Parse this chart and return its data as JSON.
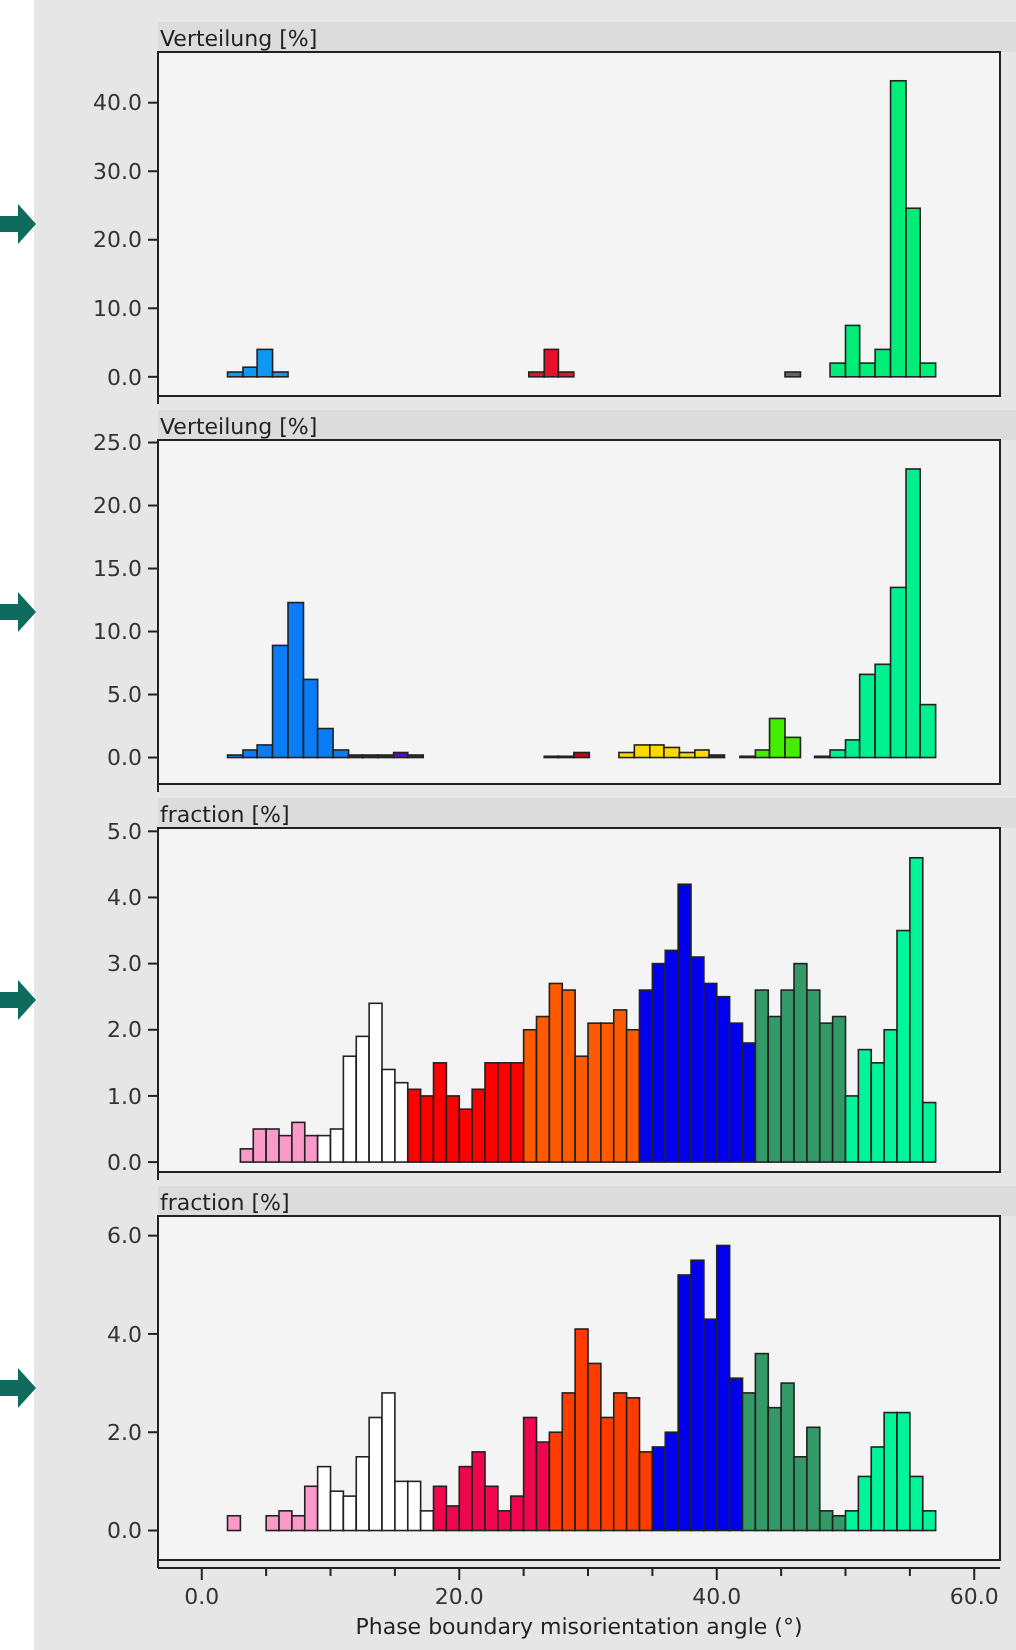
{
  "chart_data": [
    {
      "type": "histogram",
      "ylabel": "Verteilung [%]",
      "tick_labels": "y",
      "xlim": [
        -3.4,
        62
      ],
      "bins": [
        2.0,
        3.2,
        4.3,
        5.5,
        6.7,
        25.4,
        26.6,
        27.7,
        28.9,
        45.3,
        46.5,
        48.8,
        50.0,
        51.1,
        52.3,
        53.5,
        54.7,
        55.8,
        57.0
      ],
      "values": [
        0.7,
        1.4,
        4.0,
        0.7,
        0,
        0.7,
        4.0,
        0.7,
        0,
        0.7,
        0,
        2.0,
        7.5,
        2.0,
        4.0,
        43.2,
        24.6,
        2.0
      ],
      "colors": [
        "#1098f0",
        "#1098f0",
        "#1098f0",
        "#1098f0",
        "#555555",
        "#e8102a",
        "#e8102a",
        "#e8102a",
        "#555555",
        "#666666",
        "#555555",
        "#00ee77",
        "#00ee77",
        "#00ee77",
        "#00ee77",
        "#00ee77",
        "#00ee77",
        "#00ee77"
      ],
      "ylim": [
        -2.8,
        47.4
      ],
      "yticks": [
        {
          "value": 0,
          "label": "0.0"
        },
        {
          "value": 10,
          "label": "10.0"
        },
        {
          "value": 20,
          "label": "20.0"
        },
        {
          "value": 30,
          "label": "30.0"
        },
        {
          "value": 40,
          "label": "40.0"
        }
      ]
    },
    {
      "type": "histogram",
      "ylabel": "Verteilung [%]",
      "tick_labels": "y",
      "xlim": [
        -3.4,
        62
      ],
      "bins": [
        2.0,
        3.2,
        4.3,
        5.5,
        6.7,
        7.9,
        9.0,
        10.2,
        11.4,
        12.5,
        13.7,
        14.9,
        16.0,
        17.2,
        26.6,
        27.7,
        28.9,
        30.1,
        32.4,
        33.6,
        34.8,
        35.9,
        37.1,
        38.3,
        39.4,
        40.6,
        41.8,
        43.0,
        44.1,
        45.3,
        46.5,
        47.6,
        48.8,
        50.0,
        51.1,
        52.3,
        53.5,
        54.7,
        55.8,
        57.0
      ],
      "values": [
        0.2,
        0.6,
        1.0,
        8.9,
        12.3,
        6.2,
        2.3,
        0.6,
        0.2,
        0.2,
        0.2,
        0.4,
        0.2,
        0,
        0.1,
        0.1,
        0.4,
        0,
        0.4,
        1.0,
        1.0,
        0.8,
        0.4,
        0.6,
        0.2,
        0,
        0.1,
        0.6,
        3.1,
        1.6,
        0,
        0.1,
        0.6,
        1.4,
        6.6,
        7.4,
        13.5,
        22.9,
        4.2
      ],
      "colors": [
        "#0a7cf5",
        "#0a7cf5",
        "#0a7cf5",
        "#0a7cf5",
        "#0a7cf5",
        "#0a7cf5",
        "#0a7cf5",
        "#0a7cf5",
        "#333333",
        "#333333",
        "#333333",
        "#5010c0",
        "#333333",
        "#555555",
        "#333333",
        "#333333",
        "#cc0010",
        "#555555",
        "#ffd800",
        "#ffd800",
        "#ffd800",
        "#ffd800",
        "#ffd800",
        "#ffd800",
        "#333333",
        "#555555",
        "#333333",
        "#44ee00",
        "#44ee00",
        "#44ee00",
        "#555555",
        "#333333",
        "#00f090",
        "#00f090",
        "#00f090",
        "#00f090",
        "#00f090",
        "#00f090",
        "#00f090"
      ],
      "ylim": [
        -2.1,
        25.2
      ],
      "yticks": [
        {
          "value": 0,
          "label": "0.0"
        },
        {
          "value": 5,
          "label": "5.0"
        },
        {
          "value": 10,
          "label": "10.0"
        },
        {
          "value": 15,
          "label": "15.0"
        },
        {
          "value": 20,
          "label": "20.0"
        },
        {
          "value": 25,
          "label": "25.0"
        }
      ]
    },
    {
      "type": "histogram",
      "ylabel": "fraction [%]",
      "tick_labels": "y",
      "xlim": [
        -3.4,
        62
      ],
      "bins": [
        2,
        3,
        4,
        5,
        6,
        7,
        8,
        9,
        10,
        11,
        12,
        13,
        14,
        15,
        16,
        17,
        18,
        19,
        20,
        21,
        22,
        23,
        24,
        25,
        26,
        27,
        28,
        29,
        30,
        31,
        32,
        33,
        34,
        35,
        36,
        37,
        38,
        39,
        40,
        41,
        42,
        43,
        44,
        45,
        46,
        47,
        48,
        49,
        50,
        51,
        52,
        53,
        54,
        55,
        56,
        57
      ],
      "values": [
        0,
        0.2,
        0.5,
        0.5,
        0.4,
        0.6,
        0.4,
        0.4,
        0.5,
        1.6,
        1.9,
        2.4,
        1.4,
        1.2,
        1.1,
        1.0,
        1.5,
        1.0,
        0.8,
        1.1,
        1.5,
        1.5,
        1.5,
        2.0,
        2.2,
        2.7,
        2.6,
        1.6,
        2.1,
        2.1,
        2.3,
        2.0,
        2.6,
        3.0,
        3.2,
        4.2,
        3.1,
        2.7,
        2.5,
        2.1,
        1.8,
        2.6,
        2.2,
        2.6,
        3.0,
        2.6,
        2.1,
        2.2,
        1.0,
        1.7,
        1.5,
        2.0,
        3.5,
        4.6,
        0.9
      ],
      "colors": [
        "#f99ac8",
        "#f99ac8",
        "#f99ac8",
        "#f99ac8",
        "#f99ac8",
        "#f99ac8",
        "#f99ac8",
        "#ffffff",
        "#ffffff",
        "#ffffff",
        "#ffffff",
        "#ffffff",
        "#ffffff",
        "#ffffff",
        "#ff0000",
        "#ff0000",
        "#ff0000",
        "#ff0000",
        "#ff0000",
        "#ff0000",
        "#ff0000",
        "#ff0000",
        "#ff0000",
        "#ff5a00",
        "#ff5a00",
        "#ff5a00",
        "#ff5a00",
        "#ff5a00",
        "#ff5a00",
        "#ff5a00",
        "#ff5a00",
        "#ff5a00",
        "#0000ee",
        "#0000ee",
        "#0000ee",
        "#0000ee",
        "#0000ee",
        "#0000ee",
        "#0000ee",
        "#0000ee",
        "#0000ee",
        "#339966",
        "#339966",
        "#339966",
        "#339966",
        "#339966",
        "#339966",
        "#339966",
        "#00f59a",
        "#00f59a",
        "#00f59a",
        "#00f59a",
        "#00f59a",
        "#00f59a",
        "#00f59a"
      ],
      "ylim": [
        -0.15,
        5.05
      ],
      "yticks": [
        {
          "value": 0,
          "label": "0.0"
        },
        {
          "value": 1,
          "label": "1.0"
        },
        {
          "value": 2,
          "label": "2.0"
        },
        {
          "value": 3,
          "label": "3.0"
        },
        {
          "value": 4,
          "label": "4.0"
        },
        {
          "value": 5,
          "label": "5.0"
        }
      ]
    },
    {
      "type": "histogram",
      "ylabel": "fraction [%]",
      "xlabel": "Phase boundary misorientation angle (°)",
      "xlim": [
        -3.4,
        62
      ],
      "xticks": [
        {
          "value": 0,
          "label": "0.0"
        },
        {
          "value": 5,
          "label": null
        },
        {
          "value": 10,
          "label": null
        },
        {
          "value": 15,
          "label": null
        },
        {
          "value": 20,
          "label": "20.0"
        },
        {
          "value": 25,
          "label": null
        },
        {
          "value": 30,
          "label": null
        },
        {
          "value": 35,
          "label": null
        },
        {
          "value": 40,
          "label": "40.0"
        },
        {
          "value": 45,
          "label": null
        },
        {
          "value": 50,
          "label": null
        },
        {
          "value": 55,
          "label": null
        },
        {
          "value": 60,
          "label": "60.0"
        }
      ],
      "bins": [
        2,
        3,
        4,
        5,
        6,
        7,
        8,
        9,
        10,
        11,
        12,
        13,
        14,
        15,
        16,
        17,
        18,
        19,
        20,
        21,
        22,
        23,
        24,
        25,
        26,
        27,
        28,
        29,
        30,
        31,
        32,
        33,
        34,
        35,
        36,
        37,
        38,
        39,
        40,
        41,
        42,
        43,
        44,
        45,
        46,
        47,
        48,
        49,
        50,
        51,
        52,
        53,
        54,
        55,
        56,
        57
      ],
      "values": [
        0.3,
        0,
        0,
        0.3,
        0.4,
        0.3,
        0.9,
        1.3,
        0.8,
        0.7,
        1.5,
        2.3,
        2.8,
        1.0,
        1.0,
        0.4,
        0.9,
        0.5,
        1.3,
        1.6,
        0.9,
        0.4,
        0.7,
        2.3,
        1.8,
        2.0,
        2.8,
        4.1,
        3.4,
        2.3,
        2.8,
        2.7,
        1.6,
        1.7,
        2.0,
        5.2,
        5.5,
        4.3,
        5.8,
        3.1,
        2.8,
        3.6,
        2.5,
        3.0,
        1.5,
        2.1,
        0.4,
        0.3,
        0.4,
        1.1,
        1.7,
        2.4,
        2.4,
        1.1,
        0.4
      ],
      "colors": [
        "#f99ac8",
        "#f99ac8",
        "#f99ac8",
        "#f99ac8",
        "#f99ac8",
        "#f99ac8",
        "#f99ac8",
        "#ffffff",
        "#ffffff",
        "#ffffff",
        "#ffffff",
        "#ffffff",
        "#ffffff",
        "#ffffff",
        "#ffffff",
        "#ffffff",
        "#f0064e",
        "#f0064e",
        "#f0064e",
        "#f0064e",
        "#f0064e",
        "#f0064e",
        "#f0064e",
        "#f0064e",
        "#f0064e",
        "#ff3c00",
        "#ff3c00",
        "#ff3c00",
        "#ff3c00",
        "#ff3c00",
        "#ff3c00",
        "#ff3c00",
        "#ff3c00",
        "#0000ee",
        "#0000ee",
        "#0000ee",
        "#0000ee",
        "#0000ee",
        "#0000ee",
        "#0000ee",
        "#339966",
        "#339966",
        "#339966",
        "#339966",
        "#339966",
        "#339966",
        "#339966",
        "#339966",
        "#00f59a",
        "#00f59a",
        "#00f59a",
        "#00f59a",
        "#00f59a",
        "#00f59a",
        "#00f59a"
      ],
      "ylim": [
        -0.6,
        6.4
      ],
      "yticks": [
        {
          "value": 0,
          "label": "0.0"
        },
        {
          "value": 2,
          "label": "2.0"
        },
        {
          "value": 4,
          "label": "4.0"
        },
        {
          "value": 6,
          "label": "6.0"
        }
      ]
    }
  ]
}
